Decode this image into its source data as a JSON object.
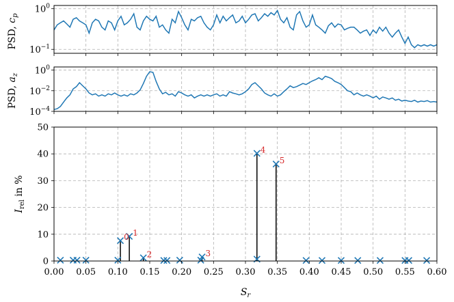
{
  "chart_data": [
    {
      "type": "line",
      "panel": "psd_cp",
      "ylabel_prefix": "PSD, ",
      "ylabel_symbol": "c",
      "ylabel_sub": "p",
      "yscale": "log",
      "ylim": [
        0.08,
        1.2
      ],
      "xlim": [
        0.0,
        0.6
      ],
      "yticks": [
        {
          "value": 1,
          "base": "10",
          "exp": "0"
        },
        {
          "value": 0.1,
          "base": "10",
          "exp": "−1"
        }
      ],
      "grid": true,
      "color": "#1f77b4",
      "series": [
        {
          "x": [
            0.0,
            0.005,
            0.01,
            0.015,
            0.02,
            0.025,
            0.03,
            0.035,
            0.04,
            0.045,
            0.05,
            0.055,
            0.06,
            0.065,
            0.07,
            0.075,
            0.08,
            0.085,
            0.09,
            0.095,
            0.1,
            0.105,
            0.11,
            0.115,
            0.12,
            0.125,
            0.13,
            0.135,
            0.14,
            0.145,
            0.15,
            0.155,
            0.16,
            0.165,
            0.17,
            0.175,
            0.18,
            0.185,
            0.19,
            0.195,
            0.2,
            0.205,
            0.21,
            0.215,
            0.22,
            0.225,
            0.23,
            0.235,
            0.24,
            0.245,
            0.25,
            0.255,
            0.26,
            0.265,
            0.27,
            0.275,
            0.28,
            0.285,
            0.29,
            0.295,
            0.3,
            0.305,
            0.31,
            0.315,
            0.32,
            0.325,
            0.33,
            0.335,
            0.34,
            0.345,
            0.35,
            0.355,
            0.36,
            0.365,
            0.37,
            0.375,
            0.38,
            0.385,
            0.39,
            0.395,
            0.4,
            0.405,
            0.41,
            0.415,
            0.42,
            0.425,
            0.43,
            0.435,
            0.44,
            0.445,
            0.45,
            0.455,
            0.46,
            0.465,
            0.47,
            0.475,
            0.48,
            0.485,
            0.49,
            0.495,
            0.5,
            0.505,
            0.51,
            0.515,
            0.52,
            0.525,
            0.53,
            0.535,
            0.54,
            0.545,
            0.55,
            0.555,
            0.56,
            0.565,
            0.57,
            0.575,
            0.58,
            0.585,
            0.59,
            0.595,
            0.6
          ],
          "y": [
            0.3,
            0.4,
            0.45,
            0.5,
            0.42,
            0.35,
            0.55,
            0.6,
            0.5,
            0.45,
            0.4,
            0.25,
            0.45,
            0.55,
            0.5,
            0.35,
            0.3,
            0.5,
            0.45,
            0.3,
            0.5,
            0.65,
            0.4,
            0.45,
            0.55,
            0.75,
            0.35,
            0.3,
            0.5,
            0.65,
            0.55,
            0.5,
            0.65,
            0.35,
            0.4,
            0.3,
            0.25,
            0.55,
            0.45,
            0.85,
            0.6,
            0.4,
            0.3,
            0.55,
            0.5,
            0.6,
            0.65,
            0.45,
            0.35,
            0.3,
            0.4,
            0.7,
            0.45,
            0.65,
            0.5,
            0.6,
            0.7,
            0.45,
            0.5,
            0.65,
            0.45,
            0.55,
            0.7,
            0.75,
            0.5,
            0.6,
            0.75,
            0.65,
            0.8,
            0.7,
            0.9,
            0.55,
            0.45,
            0.6,
            0.35,
            0.3,
            0.7,
            0.85,
            0.5,
            0.35,
            0.4,
            0.7,
            0.4,
            0.35,
            0.3,
            0.25,
            0.38,
            0.45,
            0.35,
            0.42,
            0.4,
            0.3,
            0.33,
            0.35,
            0.35,
            0.3,
            0.25,
            0.28,
            0.3,
            0.22,
            0.3,
            0.25,
            0.35,
            0.28,
            0.35,
            0.25,
            0.2,
            0.25,
            0.3,
            0.2,
            0.14,
            0.2,
            0.13,
            0.11,
            0.13,
            0.12,
            0.13,
            0.12,
            0.13,
            0.12,
            0.13
          ]
        }
      ]
    },
    {
      "type": "line",
      "panel": "psd_az",
      "ylabel_prefix": "PSD, ",
      "ylabel_symbol": "a",
      "ylabel_sub": "z",
      "yscale": "log",
      "ylim": [
        0.0001,
        2
      ],
      "xlim": [
        0.0,
        0.6
      ],
      "yticks": [
        {
          "value": 1,
          "base": "10",
          "exp": "0"
        },
        {
          "value": 0.01,
          "base": "10",
          "exp": "−2"
        },
        {
          "value": 0.0001,
          "base": "10",
          "exp": "−4"
        }
      ],
      "grid": true,
      "color": "#1f77b4",
      "series": [
        {
          "x": [
            0.0,
            0.005,
            0.01,
            0.015,
            0.02,
            0.025,
            0.03,
            0.035,
            0.04,
            0.045,
            0.05,
            0.055,
            0.06,
            0.065,
            0.07,
            0.075,
            0.08,
            0.085,
            0.09,
            0.095,
            0.1,
            0.105,
            0.11,
            0.115,
            0.12,
            0.125,
            0.13,
            0.135,
            0.14,
            0.145,
            0.15,
            0.155,
            0.16,
            0.165,
            0.17,
            0.175,
            0.18,
            0.185,
            0.19,
            0.195,
            0.2,
            0.205,
            0.21,
            0.215,
            0.22,
            0.225,
            0.23,
            0.235,
            0.24,
            0.245,
            0.25,
            0.255,
            0.26,
            0.265,
            0.27,
            0.275,
            0.28,
            0.285,
            0.29,
            0.295,
            0.3,
            0.305,
            0.31,
            0.315,
            0.32,
            0.325,
            0.33,
            0.335,
            0.34,
            0.345,
            0.35,
            0.355,
            0.36,
            0.365,
            0.37,
            0.375,
            0.38,
            0.385,
            0.39,
            0.395,
            0.4,
            0.405,
            0.41,
            0.415,
            0.42,
            0.425,
            0.43,
            0.435,
            0.44,
            0.445,
            0.45,
            0.455,
            0.46,
            0.465,
            0.47,
            0.475,
            0.48,
            0.485,
            0.49,
            0.495,
            0.5,
            0.505,
            0.51,
            0.515,
            0.52,
            0.525,
            0.53,
            0.535,
            0.54,
            0.545,
            0.55,
            0.555,
            0.56,
            0.565,
            0.57,
            0.575,
            0.58,
            0.585,
            0.59,
            0.595,
            0.6
          ],
          "y": [
            0.00015,
            0.00018,
            0.0003,
            0.0008,
            0.002,
            0.004,
            0.015,
            0.025,
            0.06,
            0.03,
            0.015,
            0.006,
            0.004,
            0.005,
            0.003,
            0.004,
            0.003,
            0.005,
            0.004,
            0.006,
            0.004,
            0.003,
            0.004,
            0.003,
            0.005,
            0.004,
            0.006,
            0.012,
            0.05,
            0.25,
            0.7,
            0.6,
            0.08,
            0.015,
            0.005,
            0.007,
            0.004,
            0.005,
            0.003,
            0.008,
            0.006,
            0.004,
            0.003,
            0.004,
            0.002,
            0.003,
            0.004,
            0.003,
            0.004,
            0.003,
            0.004,
            0.005,
            0.003,
            0.004,
            0.003,
            0.008,
            0.006,
            0.005,
            0.004,
            0.005,
            0.008,
            0.015,
            0.04,
            0.06,
            0.03,
            0.015,
            0.006,
            0.004,
            0.003,
            0.005,
            0.003,
            0.004,
            0.008,
            0.015,
            0.03,
            0.02,
            0.025,
            0.035,
            0.05,
            0.04,
            0.06,
            0.09,
            0.12,
            0.18,
            0.12,
            0.25,
            0.2,
            0.15,
            0.08,
            0.06,
            0.04,
            0.02,
            0.01,
            0.008,
            0.004,
            0.006,
            0.004,
            0.003,
            0.004,
            0.003,
            0.002,
            0.003,
            0.0015,
            0.0025,
            0.002,
            0.0015,
            0.002,
            0.0012,
            0.0015,
            0.001,
            0.0012,
            0.001,
            0.0009,
            0.0012,
            0.0008,
            0.001,
            0.0009,
            0.0011,
            0.0008,
            0.0009,
            0.0008
          ]
        }
      ]
    },
    {
      "type": "scatter",
      "panel": "irel",
      "ylabel_symbol": "I",
      "ylabel_sub": "rel",
      "ylabel_suffix": " in %",
      "xlabel_symbol": "S",
      "xlabel_sub": "r",
      "xlim": [
        0.0,
        0.6
      ],
      "ylim": [
        0,
        50
      ],
      "xticks": [
        "0.00",
        "0.05",
        "0.10",
        "0.15",
        "0.20",
        "0.25",
        "0.30",
        "0.35",
        "0.40",
        "0.45",
        "0.50",
        "0.55",
        "0.60"
      ],
      "yticks": [
        "0",
        "10",
        "20",
        "30",
        "40",
        "50"
      ],
      "grid": true,
      "marker_color": "#1f77b4",
      "annotation_color": "#d62728",
      "points": [
        {
          "x": 0.01,
          "y": 0.3
        },
        {
          "x": 0.03,
          "y": 0.3
        },
        {
          "x": 0.036,
          "y": 0.3
        },
        {
          "x": 0.05,
          "y": 0.3
        },
        {
          "x": 0.1,
          "y": 0.3
        },
        {
          "x": 0.104,
          "y": 7.6
        },
        {
          "x": 0.118,
          "y": 9.2
        },
        {
          "x": 0.14,
          "y": 1.2
        },
        {
          "x": 0.172,
          "y": 0.2
        },
        {
          "x": 0.177,
          "y": 0.2
        },
        {
          "x": 0.197,
          "y": 0.3
        },
        {
          "x": 0.23,
          "y": 0.3
        },
        {
          "x": 0.232,
          "y": 1.5
        },
        {
          "x": 0.318,
          "y": 40.2
        },
        {
          "x": 0.318,
          "y": 0.7
        },
        {
          "x": 0.348,
          "y": 36.2
        },
        {
          "x": 0.395,
          "y": 0.2
        },
        {
          "x": 0.42,
          "y": 0.2
        },
        {
          "x": 0.45,
          "y": 0.2
        },
        {
          "x": 0.476,
          "y": 0.2
        },
        {
          "x": 0.511,
          "y": 0.2
        },
        {
          "x": 0.55,
          "y": 0.2
        },
        {
          "x": 0.556,
          "y": 0.2
        },
        {
          "x": 0.584,
          "y": 0.2
        }
      ],
      "stems": [
        {
          "label": "0",
          "x": 0.104,
          "y": 7.6
        },
        {
          "label": "1",
          "x": 0.118,
          "y": 9.2
        },
        {
          "label": "2",
          "x": 0.14,
          "y": 1.2
        },
        {
          "label": "3",
          "x": 0.232,
          "y": 1.5
        },
        {
          "label": "4",
          "x": 0.318,
          "y": 40.2
        },
        {
          "label": "5",
          "x": 0.348,
          "y": 36.2
        }
      ]
    }
  ]
}
